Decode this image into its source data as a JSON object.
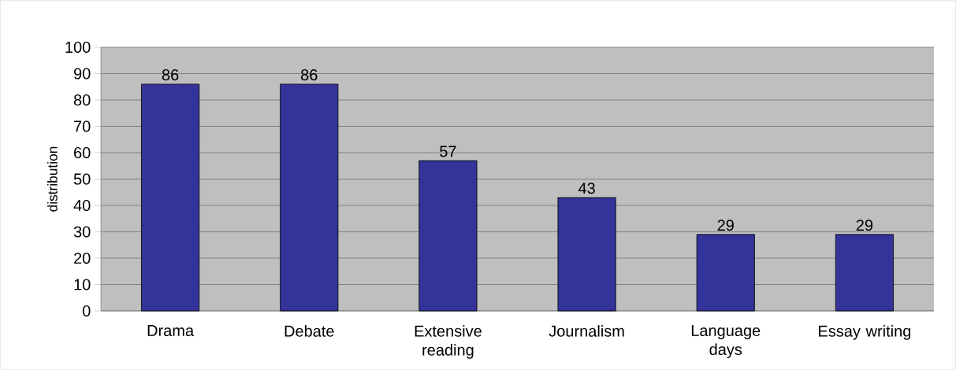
{
  "chart_data": {
    "type": "bar",
    "ylabel": "distribution",
    "categories": [
      "Drama",
      "Debate",
      "Extensive reading",
      "Journalism",
      "Language days",
      "Essay writing"
    ],
    "values": [
      86,
      86,
      57,
      43,
      29,
      29
    ],
    "color": "#333399",
    "ylim": [
      0,
      100
    ],
    "yticks": [
      0,
      10,
      20,
      30,
      40,
      50,
      60,
      70,
      80,
      90,
      100
    ],
    "grid": "y",
    "data_labels": true
  }
}
